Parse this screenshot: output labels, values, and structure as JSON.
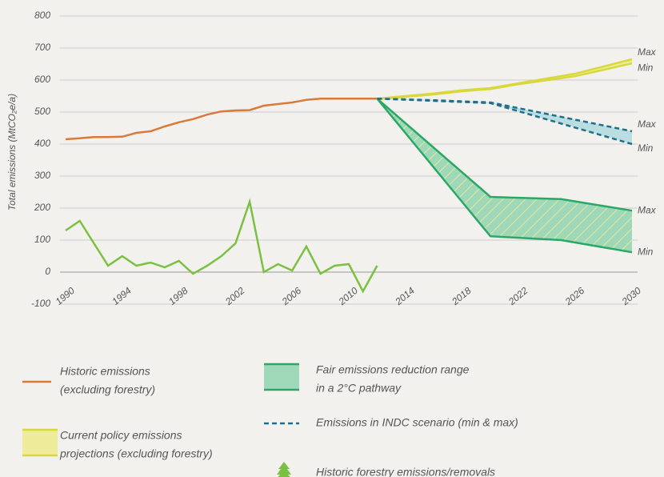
{
  "chart_data": {
    "type": "line",
    "y_label": "Total emissions (MtCO₂e/a)",
    "xlim": [
      1990,
      2030
    ],
    "xticks": [
      1990,
      1994,
      1998,
      2002,
      2006,
      2010,
      2014,
      2018,
      2022,
      2026,
      2030
    ],
    "ylim": [
      -100,
      800
    ],
    "yticks": [
      -100,
      0,
      100,
      200,
      300,
      400,
      500,
      600,
      700,
      800
    ],
    "grid": true,
    "series": [
      {
        "name": [
          "Historic emissions",
          "(excluding forestry)"
        ],
        "kind": "line",
        "color": "#d9793a",
        "x": [
          1990,
          1991,
          1992,
          1993,
          1994,
          1995,
          1996,
          1997,
          1998,
          1999,
          2000,
          2001,
          2002,
          2003,
          2004,
          2005,
          2006,
          2007,
          2008,
          2009,
          2010,
          2011,
          2012
        ],
        "values": [
          415,
          418,
          422,
          422,
          423,
          435,
          440,
          455,
          468,
          478,
          492,
          502,
          505,
          506,
          520,
          525,
          530,
          538,
          542,
          542,
          542,
          542,
          542
        ]
      },
      {
        "name": [
          "Current policy emissions",
          "projections (excluding forestry)"
        ],
        "kind": "range",
        "color": "#d8d83e",
        "fill": "#ecec9a",
        "x": [
          2012,
          2016,
          2018,
          2020,
          2022,
          2026,
          2030
        ],
        "max": [
          542,
          558,
          568,
          575,
          590,
          620,
          665
        ],
        "min": [
          540,
          555,
          565,
          572,
          587,
          612,
          652
        ],
        "max_label": "Max",
        "min_label": "Min"
      },
      {
        "name": [
          "Fair emissions reduction range",
          "in a 2°C pathway"
        ],
        "kind": "range",
        "color": "#2aa866",
        "fill": "#9ed8b8",
        "hatch": true,
        "x": [
          2012,
          2020,
          2025,
          2030
        ],
        "max": [
          542,
          235,
          228,
          192
        ],
        "min": [
          542,
          112,
          100,
          62
        ],
        "max_label": "Max",
        "min_label": "Min"
      },
      {
        "name": [
          "Emissions in INDC scenario (min & max)"
        ],
        "kind": "range",
        "color": "#1f6e8c",
        "fill": "#b9dde0",
        "dashed": true,
        "x": [
          2012,
          2016,
          2020,
          2030
        ],
        "max": [
          542,
          537,
          530,
          440
        ],
        "min": [
          542,
          535,
          528,
          400
        ],
        "max_label": "Max",
        "min_label": "Min"
      },
      {
        "name": [
          "Historic forestry emissions/removals"
        ],
        "kind": "line",
        "color": "#7ac143",
        "x": [
          1990,
          1991,
          1992,
          1993,
          1994,
          1995,
          1996,
          1997,
          1998,
          1999,
          2000,
          2001,
          2002,
          2003,
          2004,
          2005,
          2006,
          2007,
          2008,
          2009,
          2010,
          2011,
          2012
        ],
        "values": [
          130,
          160,
          90,
          20,
          50,
          20,
          30,
          15,
          35,
          -5,
          20,
          50,
          90,
          220,
          0,
          25,
          5,
          80,
          -5,
          20,
          25,
          -60,
          20
        ]
      }
    ]
  }
}
